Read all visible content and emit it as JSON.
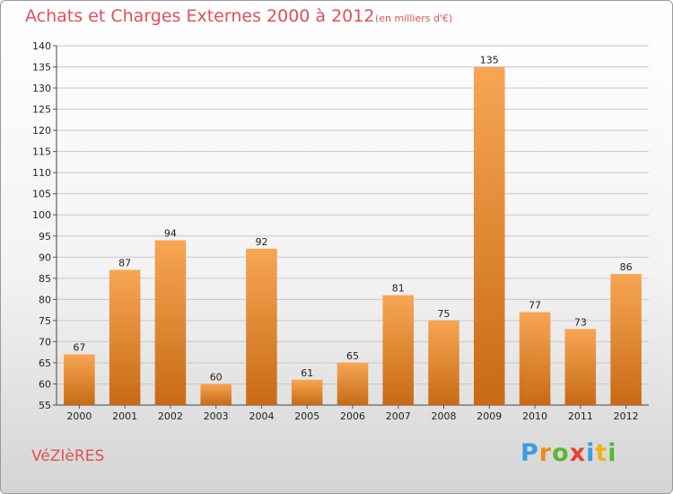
{
  "title": "Achats et Charges Externes 2000 à 2012",
  "subtitle": "(en milliers d'€)",
  "commune": "VéZIèRES",
  "logo": {
    "text": "Proxiti",
    "letters": [
      {
        "ch": "P",
        "color": "#3d9be0"
      },
      {
        "ch": "r",
        "color": "#f08a1c"
      },
      {
        "ch": "o",
        "color": "#58b830"
      },
      {
        "ch": "x",
        "color": "#e8432e"
      },
      {
        "ch": "i",
        "color": "#3d9be0"
      },
      {
        "ch": "t",
        "color": "#f0b21c"
      },
      {
        "ch": "i",
        "color": "#58b830"
      }
    ]
  },
  "colors": {
    "bar_light": "#f7a654",
    "bar_dark": "#c86a14",
    "text_accent": "#e0505a",
    "grid": "#c8c8c8"
  },
  "chart_data": {
    "type": "bar",
    "title": "Achats et Charges Externes 2000 à 2012",
    "subtitle": "(en milliers d'€)",
    "categories": [
      "2000",
      "2001",
      "2002",
      "2003",
      "2004",
      "2005",
      "2006",
      "2007",
      "2008",
      "2009",
      "2010",
      "2011",
      "2012"
    ],
    "values": [
      67,
      87,
      94,
      60,
      92,
      61,
      65,
      81,
      75,
      135,
      77,
      73,
      86
    ],
    "ylim": [
      55,
      140
    ],
    "yticks": [
      55,
      60,
      65,
      70,
      75,
      80,
      85,
      90,
      95,
      100,
      105,
      110,
      115,
      120,
      125,
      130,
      135,
      140
    ],
    "grid": true,
    "data_labels": true
  }
}
